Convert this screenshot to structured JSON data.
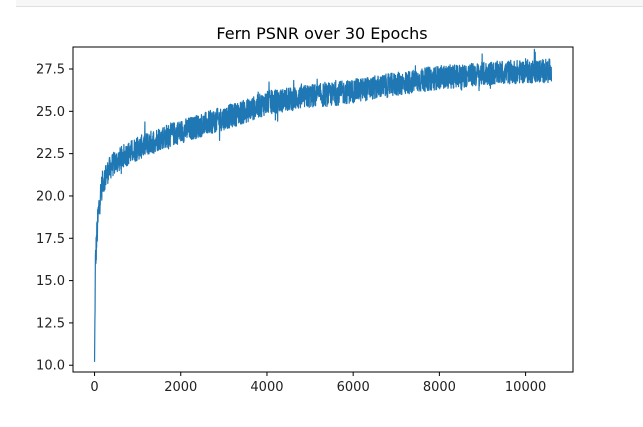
{
  "chart_data": {
    "type": "line",
    "title": "Fern PSNR over 30 Epochs",
    "xlabel": "",
    "ylabel": "",
    "xlim": [
      -500,
      11100
    ],
    "ylim": [
      9.6,
      28.8
    ],
    "xticks": [
      0,
      2000,
      4000,
      6000,
      8000,
      10000
    ],
    "xtick_labels": [
      "0",
      "2000",
      "4000",
      "6000",
      "8000",
      "10000"
    ],
    "yticks": [
      10.0,
      12.5,
      15.0,
      17.5,
      20.0,
      22.5,
      25.0,
      27.5
    ],
    "ytick_labels": [
      "10.0",
      "12.5",
      "15.0",
      "17.5",
      "20.0",
      "22.5",
      "25.0",
      "27.5"
    ],
    "grid": false,
    "color": "#1f77b4",
    "series": [
      {
        "x": [
          0,
          20,
          50,
          100,
          150,
          200,
          300,
          400,
          500,
          700,
          1000,
          1500,
          2000,
          2500,
          3000,
          3500,
          4000,
          4500,
          5000,
          5500,
          6000,
          6500,
          7000,
          7500,
          8000,
          8500,
          9000,
          9500,
          10000,
          10600
        ],
        "y": [
          10.2,
          16.0,
          17.5,
          19.3,
          20.3,
          20.9,
          21.4,
          21.8,
          22.0,
          22.4,
          22.8,
          23.4,
          23.8,
          24.2,
          24.6,
          25.0,
          25.5,
          25.7,
          25.9,
          26.0,
          26.2,
          26.4,
          26.6,
          26.8,
          27.0,
          27.1,
          27.2,
          27.3,
          27.35,
          27.4
        ],
        "noise_band": [
          0,
          2.0,
          2.0,
          1.8,
          1.6,
          1.5,
          1.4,
          1.4,
          1.4,
          1.4,
          1.4,
          1.4,
          1.4,
          1.4,
          1.4,
          1.4,
          1.4,
          1.4,
          1.4,
          1.4,
          1.4,
          1.4,
          1.4,
          1.4,
          1.4,
          1.4,
          1.4,
          1.4,
          1.4,
          1.4
        ]
      }
    ]
  }
}
